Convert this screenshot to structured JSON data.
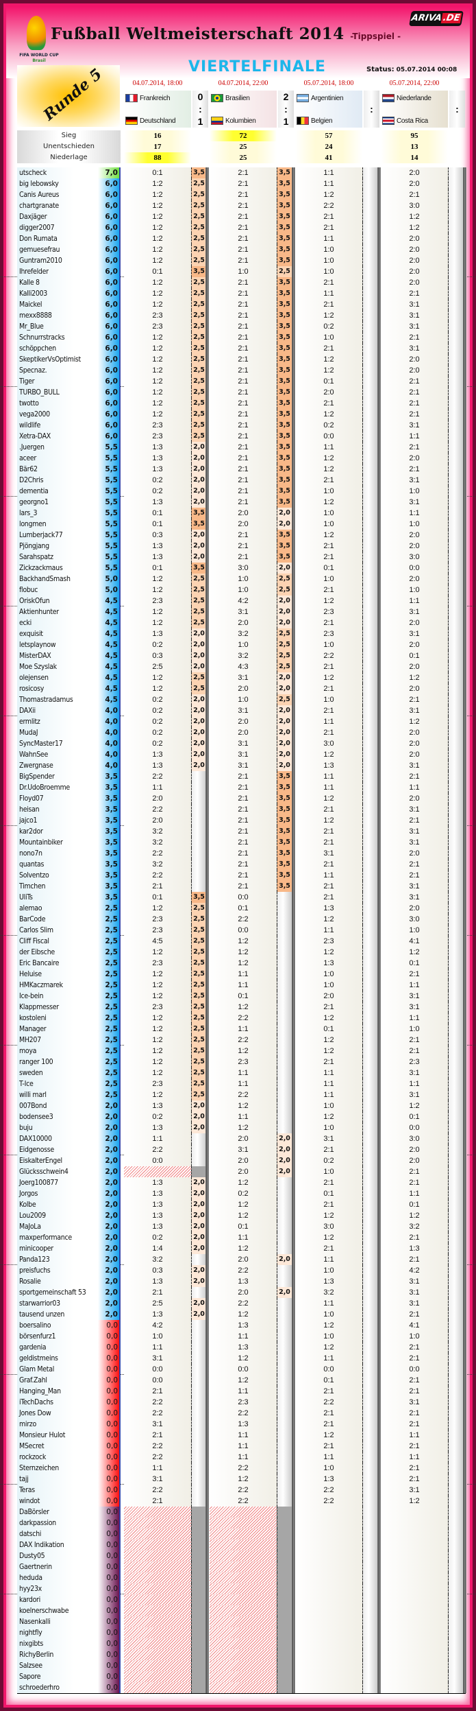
{
  "header": {
    "title": "Fußball Weltmeisterschaft 2014",
    "subtitle": "-Tippspiel -",
    "fifa_logo_text": "FIFA WORLD CUP",
    "fifa_logo_sub": "Brasil",
    "ariva_logo": "ARIVA",
    "ariva_logo_tld": ".DE",
    "round": "Runde 5",
    "stage": "VIERTELFINALE",
    "status_label": "Status:",
    "status_value": "05.07.2014 00:08"
  },
  "colors": {
    "frame": "#f0166a",
    "stage": "#1cb6ea",
    "date": "#cc0000",
    "pts_3_5": "#f8b888",
    "pts_2_5": "#fcd3b2",
    "pts_2_0": "#fde8d8"
  },
  "matches": [
    {
      "date": "04.07.2014, 18:00",
      "home": "Frankreich",
      "away": "Deutschland",
      "home_goals": "0",
      "sep": ":",
      "away_goals": "1",
      "home_flag": "france-flag",
      "away_flag": "germany-flag"
    },
    {
      "date": "04.07.2014, 22:00",
      "home": "Brasilien",
      "away": "Kolumbien",
      "home_goals": "2",
      "sep": ":",
      "away_goals": "1",
      "home_flag": "brazil-flag",
      "away_flag": "colombia-flag"
    },
    {
      "date": "05.07.2014, 18:00",
      "home": "Argentinien",
      "away": "Belgien",
      "home_goals": "",
      "sep": ":",
      "away_goals": "",
      "home_flag": "argentina-flag",
      "away_flag": "belgium-flag"
    },
    {
      "date": "05.07.2014, 22:00",
      "home": "Niederlande",
      "away": "Costa Rica",
      "home_goals": "",
      "sep": ":",
      "away_goals": "",
      "home_flag": "netherlands-flag",
      "away_flag": "costa-rica-flag"
    }
  ],
  "stats": {
    "labels": [
      "Sieg",
      "Unentschieden",
      "Niederlage"
    ],
    "values": [
      [
        "16",
        "17",
        "88"
      ],
      [
        "72",
        "25",
        "25"
      ],
      [
        "57",
        "24",
        "41"
      ],
      [
        "95",
        "13",
        "14"
      ]
    ]
  },
  "rows": [
    [
      "utscheck",
      "7,0",
      "0:1",
      "3,5",
      "2:1",
      "3,5",
      "1:1",
      "2:0"
    ],
    [
      "big lebowsky",
      "6,0",
      "1:2",
      "2,5",
      "2:1",
      "3,5",
      "1:1",
      "2:0"
    ],
    [
      "Canis Aureus",
      "6,0",
      "1:2",
      "2,5",
      "2:1",
      "3,5",
      "1:2",
      "2:1"
    ],
    [
      "chartgranate",
      "6,0",
      "1:2",
      "2,5",
      "2:1",
      "3,5",
      "2:2",
      "3:0"
    ],
    [
      "Daxjäger",
      "6,0",
      "1:2",
      "2,5",
      "2:1",
      "3,5",
      "2:1",
      "1:2"
    ],
    [
      "digger2007",
      "6,0",
      "1:2",
      "2,5",
      "2:1",
      "3,5",
      "2:1",
      "1:2"
    ],
    [
      "Don Rumata",
      "6,0",
      "1:2",
      "2,5",
      "2:1",
      "3,5",
      "1:1",
      "2:0"
    ],
    [
      "gemuesefrau",
      "6,0",
      "1:2",
      "2,5",
      "2:1",
      "3,5",
      "1:0",
      "2:0"
    ],
    [
      "Guntram2010",
      "6,0",
      "1:2",
      "2,5",
      "2:1",
      "3,5",
      "1:0",
      "2:0"
    ],
    [
      "Ihrefelder",
      "6,0",
      "0:1",
      "3,5",
      "1:0",
      "2,5",
      "1:0",
      "2:0"
    ],
    [
      "Kalle 8",
      "6,0",
      "1:2",
      "2,5",
      "2:1",
      "3,5",
      "2:1",
      "2:0"
    ],
    [
      "Kalli2003",
      "6,0",
      "1:2",
      "2,5",
      "2:1",
      "3,5",
      "1:1",
      "2:1"
    ],
    [
      "Maickel",
      "6,0",
      "1:2",
      "2,5",
      "2:1",
      "3,5",
      "2:1",
      "3:1"
    ],
    [
      "mexx8888",
      "6,0",
      "2:3",
      "2,5",
      "2:1",
      "3,5",
      "1:2",
      "3:1"
    ],
    [
      "Mr_Blue",
      "6,0",
      "2:3",
      "2,5",
      "2:1",
      "3,5",
      "0:2",
      "3:1"
    ],
    [
      "Schnurrstracks",
      "6,0",
      "1:2",
      "2,5",
      "2:1",
      "3,5",
      "1:0",
      "2:1"
    ],
    [
      "schöppchen",
      "6,0",
      "1:2",
      "2,5",
      "2:1",
      "3,5",
      "2:1",
      "3:1"
    ],
    [
      "SkeptikerVsOptimist",
      "6,0",
      "1:2",
      "2,5",
      "2:1",
      "3,5",
      "1:2",
      "2:0"
    ],
    [
      "Specnaz.",
      "6,0",
      "1:2",
      "2,5",
      "2:1",
      "3,5",
      "1:2",
      "2:0"
    ],
    [
      "Tiger",
      "6,0",
      "1:2",
      "2,5",
      "2:1",
      "3,5",
      "0:1",
      "2:1"
    ],
    [
      "TURBO_BULL",
      "6,0",
      "1:2",
      "2,5",
      "2:1",
      "3,5",
      "2:0",
      "2:1"
    ],
    [
      "twotto",
      "6,0",
      "1:2",
      "2,5",
      "2:1",
      "3,5",
      "2:1",
      "2:1"
    ],
    [
      "vega2000",
      "6,0",
      "1:2",
      "2,5",
      "2:1",
      "3,5",
      "1:2",
      "2:1"
    ],
    [
      "wildlife",
      "6,0",
      "2:3",
      "2,5",
      "2:1",
      "3,5",
      "0:2",
      "3:1"
    ],
    [
      "Xetra-DAX",
      "6,0",
      "2:3",
      "2,5",
      "2:1",
      "3,5",
      "0:0",
      "1:1"
    ],
    [
      ".Juergen",
      "5,5",
      "1:3",
      "2,0",
      "2:1",
      "3,5",
      "1:1",
      "2:1"
    ],
    [
      "aceer",
      "5,5",
      "1:3",
      "2,0",
      "2:1",
      "3,5",
      "1:2",
      "2:0"
    ],
    [
      "Bär62",
      "5,5",
      "1:3",
      "2,0",
      "2:1",
      "3,5",
      "1:2",
      "2:1"
    ],
    [
      "D2Chris",
      "5,5",
      "0:2",
      "2,0",
      "2:1",
      "3,5",
      "2:1",
      "3:1"
    ],
    [
      "dementia",
      "5,5",
      "0:2",
      "2,0",
      "2:1",
      "3,5",
      "1:0",
      "1:0"
    ],
    [
      "georgno1",
      "5,5",
      "1:3",
      "2,0",
      "2:1",
      "3,5",
      "1:2",
      "3:1"
    ],
    [
      "lars_3",
      "5,5",
      "0:1",
      "3,5",
      "2:0",
      "2,0",
      "1:0",
      "1:1"
    ],
    [
      "longmen",
      "5,5",
      "0:1",
      "3,5",
      "2:0",
      "2,0",
      "1:0",
      "1:0"
    ],
    [
      "Lumberjack77",
      "5,5",
      "0:3",
      "2,0",
      "2:1",
      "3,5",
      "1:2",
      "2:0"
    ],
    [
      "Pjöngjang",
      "5,5",
      "1:3",
      "2,0",
      "2:1",
      "3,5",
      "2:1",
      "2:0"
    ],
    [
      "Sarahspatz",
      "5,5",
      "1:3",
      "2,0",
      "2:1",
      "3,5",
      "2:1",
      "3:0"
    ],
    [
      "Zickzackmaus",
      "5,5",
      "0:1",
      "3,5",
      "3:0",
      "2,0",
      "0:1",
      "0:0"
    ],
    [
      "BackhandSmash",
      "5,0",
      "1:2",
      "2,5",
      "1:0",
      "2,5",
      "1:0",
      "2:0"
    ],
    [
      "flobuc",
      "5,0",
      "1:2",
      "2,5",
      "1:0",
      "2,5",
      "2:1",
      "1:0"
    ],
    [
      "OriskOfun",
      "4,5",
      "2:3",
      "2,5",
      "4:2",
      "2,0",
      "1:2",
      "1:1"
    ],
    [
      "Aktienhunter",
      "4,5",
      "1:2",
      "2,5",
      "3:1",
      "2,0",
      "2:3",
      "3:1"
    ],
    [
      "ecki",
      "4,5",
      "1:2",
      "2,5",
      "2:0",
      "2,0",
      "2:1",
      "2:0"
    ],
    [
      "exquisit",
      "4,5",
      "1:3",
      "2,0",
      "3:2",
      "2,5",
      "2:3",
      "3:1"
    ],
    [
      "letsplaynow",
      "4,5",
      "0:2",
      "2,0",
      "1:0",
      "2,5",
      "1:0",
      "2:0"
    ],
    [
      "MisterDAX",
      "4,5",
      "0:3",
      "2,0",
      "3:2",
      "2,5",
      "2:2",
      "0:1"
    ],
    [
      "Moe Szyslak",
      "4,5",
      "2:5",
      "2,0",
      "4:3",
      "2,5",
      "2:1",
      "2:0"
    ],
    [
      "olejensen",
      "4,5",
      "1:2",
      "2,5",
      "3:1",
      "2,0",
      "1:2",
      "1:2"
    ],
    [
      "rosicosy",
      "4,5",
      "1:2",
      "2,5",
      "2:0",
      "2,0",
      "2:1",
      "2:0"
    ],
    [
      "Thomastradamus",
      "4,5",
      "0:2",
      "2,0",
      "1:0",
      "2,5",
      "1:0",
      "2:1"
    ],
    [
      "DAXii",
      "4,0",
      "0:2",
      "2,0",
      "3:1",
      "2,0",
      "2:1",
      "3:1"
    ],
    [
      "ermlitz",
      "4,0",
      "0:2",
      "2,0",
      "2:0",
      "2,0",
      "1:1",
      "1:2"
    ],
    [
      "MudaJ",
      "4,0",
      "0:2",
      "2,0",
      "2:0",
      "2,0",
      "2:1",
      "2:0"
    ],
    [
      "SyncMaster17",
      "4,0",
      "0:2",
      "2,0",
      "3:1",
      "2,0",
      "3:0",
      "2:0"
    ],
    [
      "WahnSee",
      "4,0",
      "1:3",
      "2,0",
      "3:1",
      "2,0",
      "1:2",
      "2:0"
    ],
    [
      "Zwergnase",
      "4,0",
      "1:3",
      "2,0",
      "3:1",
      "2,0",
      "1:3",
      "3:1"
    ],
    [
      "BigSpender",
      "3,5",
      "2:2",
      "",
      "2:1",
      "3,5",
      "1:1",
      "2:1"
    ],
    [
      "Dr.UdoBroemme",
      "3,5",
      "1:1",
      "",
      "2:1",
      "3,5",
      "1:1",
      "1:1"
    ],
    [
      "Floyd07",
      "3,5",
      "2:0",
      "",
      "2:1",
      "3,5",
      "1:2",
      "2:0"
    ],
    [
      "heisan",
      "3,5",
      "2:2",
      "",
      "2:1",
      "3,5",
      "2:1",
      "3:1"
    ],
    [
      "jajco1",
      "3,5",
      "2:0",
      "",
      "2:1",
      "3,5",
      "1:2",
      "2:1"
    ],
    [
      "kar2dor",
      "3,5",
      "3:2",
      "",
      "2:1",
      "3,5",
      "2:1",
      "3:1"
    ],
    [
      "Mountainbiker",
      "3,5",
      "3:2",
      "",
      "2:1",
      "3,5",
      "2:1",
      "3:1"
    ],
    [
      "nono7n",
      "3,5",
      "2:2",
      "",
      "2:1",
      "3,5",
      "3:1",
      "2:0"
    ],
    [
      "quantas",
      "3,5",
      "3:2",
      "",
      "2:1",
      "3,5",
      "2:1",
      "2:1"
    ],
    [
      "Solventzo",
      "3,5",
      "2:2",
      "",
      "2:1",
      "3,5",
      "1:1",
      "2:1"
    ],
    [
      "Timchen",
      "3,5",
      "2:1",
      "",
      "2:1",
      "3,5",
      "2:1",
      "3:1"
    ],
    [
      "UliTs",
      "3,5",
      "0:1",
      "3,5",
      "0:0",
      "",
      "2:1",
      "3:1"
    ],
    [
      "alemao",
      "2,5",
      "1:2",
      "2,5",
      "0:1",
      "",
      "1:3",
      "2:0"
    ],
    [
      "BarCode",
      "2,5",
      "2:3",
      "2,5",
      "2:2",
      "",
      "1:2",
      "3:0"
    ],
    [
      "Carlos Slim",
      "2,5",
      "2:3",
      "2,5",
      "0:0",
      "",
      "1:1",
      "1:0"
    ],
    [
      "Cliff Fiscal",
      "2,5",
      "4:5",
      "2,5",
      "1:2",
      "",
      "2:3",
      "4:1"
    ],
    [
      "der Eibsche",
      "2,5",
      "1:2",
      "2,5",
      "1:2",
      "",
      "1:2",
      "1:2"
    ],
    [
      "Eric Bancaire",
      "2,5",
      "2:3",
      "2,5",
      "1:2",
      "",
      "1:3",
      "0:1"
    ],
    [
      "Heluise",
      "2,5",
      "1:2",
      "2,5",
      "1:1",
      "",
      "1:0",
      "2:1"
    ],
    [
      "HMKaczmarek",
      "2,5",
      "1:2",
      "2,5",
      "1:1",
      "",
      "1:0",
      "1:1"
    ],
    [
      "Ice-bein",
      "2,5",
      "1:2",
      "2,5",
      "0:1",
      "",
      "2:0",
      "3:1"
    ],
    [
      "Klappmesser",
      "2,5",
      "2:3",
      "2,5",
      "1:2",
      "",
      "2:1",
      "3:1"
    ],
    [
      "kostoleni",
      "2,5",
      "1:2",
      "2,5",
      "2:2",
      "",
      "1:2",
      "1:1"
    ],
    [
      "Manager",
      "2,5",
      "1:2",
      "2,5",
      "1:1",
      "",
      "0:1",
      "1:0"
    ],
    [
      "MH207",
      "2,5",
      "1:2",
      "2,5",
      "2:2",
      "",
      "1:2",
      "2:1"
    ],
    [
      "moya",
      "2,5",
      "1:2",
      "2,5",
      "1:2",
      "",
      "1:2",
      "2:1"
    ],
    [
      "ranger 100",
      "2,5",
      "1:2",
      "2,5",
      "2:3",
      "",
      "2:1",
      "2:3"
    ],
    [
      "sweden",
      "2,5",
      "1:2",
      "2,5",
      "1:1",
      "",
      "1:1",
      "3:1"
    ],
    [
      "T-Ice",
      "2,5",
      "2:3",
      "2,5",
      "1:1",
      "",
      "1:1",
      "1:1"
    ],
    [
      "willi marl",
      "2,5",
      "1:2",
      "2,5",
      "2:2",
      "",
      "1:1",
      "3:1"
    ],
    [
      "007Bond",
      "2,0",
      "1:3",
      "2,0",
      "1:2",
      "",
      "1:0",
      "1:2"
    ],
    [
      "bodensee3",
      "2,0",
      "0:2",
      "2,0",
      "1:1",
      "",
      "1:2",
      "0:1"
    ],
    [
      "buju",
      "2,0",
      "1:3",
      "2,0",
      "1:2",
      "",
      "1:0",
      "0:0"
    ],
    [
      "DAX10000",
      "2,0",
      "1:1",
      "",
      "2:0",
      "2,0",
      "3:1",
      "3:0"
    ],
    [
      "Eidgenosse",
      "2,0",
      "2:2",
      "",
      "3:1",
      "2,0",
      "2:1",
      "2:0"
    ],
    [
      "EiskalterEngel",
      "2,0",
      "0:0",
      "",
      "2:0",
      "2,0",
      "0:2",
      "2:0"
    ],
    [
      "Glücksschwein4",
      "2,0",
      null,
      null,
      "2:0",
      "2,0",
      "1:0",
      "2:1"
    ],
    [
      "Joerg100877",
      "2,0",
      "1:3",
      "2,0",
      "1:2",
      "",
      "2:1",
      "2:1"
    ],
    [
      "Jorgos",
      "2,0",
      "1:3",
      "2,0",
      "0:2",
      "",
      "0:1",
      "1:1"
    ],
    [
      "Kolbe",
      "2,0",
      "1:3",
      "2,0",
      "1:2",
      "",
      "2:1",
      "0:1"
    ],
    [
      "Lou2009",
      "2,0",
      "1:3",
      "2,0",
      "1:2",
      "",
      "1:2",
      "1:2"
    ],
    [
      "MaJoLa",
      "2,0",
      "1:3",
      "2,0",
      "0:1",
      "",
      "3:0",
      "3:2"
    ],
    [
      "maxperformance",
      "2,0",
      "0:2",
      "2,0",
      "1:1",
      "",
      "1:2",
      "2:1"
    ],
    [
      "minicooper",
      "2,0",
      "1:4",
      "2,0",
      "1:2",
      "",
      "2:1",
      "1:3"
    ],
    [
      "Panda123",
      "2,0",
      "3:2",
      "",
      "2:0",
      "2,0",
      "1:1",
      "2:1"
    ],
    [
      "preisfuchs",
      "2,0",
      "0:3",
      "2,0",
      "2:2",
      "",
      "1:0",
      "4:2"
    ],
    [
      "Rosalie",
      "2,0",
      "1:3",
      "2,0",
      "1:3",
      "",
      "1:3",
      "3:1"
    ],
    [
      "sportgemeinschaft 53",
      "2,0",
      "2:1",
      "",
      "2:0",
      "2,0",
      "3:2",
      "3:1"
    ],
    [
      "starwarrior03",
      "2,0",
      "2:5",
      "2,0",
      "2:2",
      "",
      "1:1",
      "3:1"
    ],
    [
      "tausend unzen",
      "2,0",
      "1:3",
      "2,0",
      "1:2",
      "",
      "1:0",
      "2:1"
    ],
    [
      "boersalino",
      "0,0",
      "4:2",
      "",
      "1:3",
      "",
      "1:2",
      "4:1"
    ],
    [
      "börsenfurz1",
      "0,0",
      "1:0",
      "",
      "1:1",
      "",
      "1:0",
      "1:0"
    ],
    [
      "gardenia",
      "0,0",
      "1:1",
      "",
      "1:3",
      "",
      "1:2",
      "2:1"
    ],
    [
      "geldistmeins",
      "0,0",
      "3:1",
      "",
      "1:2",
      "",
      "1:1",
      "2:1"
    ],
    [
      "Glam Metal",
      "0,0",
      "0:0",
      "",
      "0:0",
      "",
      "0:0",
      "0:0"
    ],
    [
      "Graf.Zahl",
      "0,0",
      "0:0",
      "",
      "1:2",
      "",
      "0:1",
      "2:1"
    ],
    [
      "Hanging_Man",
      "0,0",
      "2:1",
      "",
      "1:1",
      "",
      "2:1",
      "2:1"
    ],
    [
      "iTechDachs",
      "0,0",
      "2:2",
      "",
      "2:3",
      "",
      "2:2",
      "3:1"
    ],
    [
      "Jones Dow",
      "0,0",
      "2:2",
      "",
      "2:2",
      "",
      "2:1",
      "2:1"
    ],
    [
      "mirzo",
      "0,0",
      "3:1",
      "",
      "1:3",
      "",
      "2:1",
      "2:1"
    ],
    [
      "Monsieur Hulot",
      "0,0",
      "2:1",
      "",
      "1:1",
      "",
      "1:2",
      "1:1"
    ],
    [
      "MSecret",
      "0,0",
      "2:2",
      "",
      "1:1",
      "",
      "2:1",
      "2:1"
    ],
    [
      "rockzock",
      "0,0",
      "2:2",
      "",
      "1:1",
      "",
      "1:1",
      "1:1"
    ],
    [
      "Sternzeichen",
      "0,0",
      "1:1",
      "",
      "2:2",
      "",
      "1:0",
      "2:1"
    ],
    [
      "tajj",
      "0,0",
      "3:1",
      "",
      "1:2",
      "",
      "1:3",
      "2:1"
    ],
    [
      "Teras",
      "0,0",
      "2:2",
      "",
      "2:2",
      "",
      "2:2",
      "3:1"
    ],
    [
      "windot",
      "0,0",
      "2:1",
      "",
      "2:2",
      "",
      "2:2",
      "1:2"
    ],
    [
      "DaBörsler",
      "0,0",
      null,
      null,
      null,
      null,
      "",
      ""
    ],
    [
      "darkpassion",
      "0,0",
      null,
      null,
      null,
      null,
      "",
      ""
    ],
    [
      "datschi",
      "0,0",
      null,
      null,
      null,
      null,
      "",
      ""
    ],
    [
      "DAX Indikation",
      "0,0",
      null,
      null,
      null,
      null,
      "",
      ""
    ],
    [
      "Dusty05",
      "0,0",
      null,
      null,
      null,
      null,
      "",
      ""
    ],
    [
      "Gaertnerin",
      "0,0",
      null,
      null,
      null,
      null,
      "",
      ""
    ],
    [
      "heduda",
      "0,0",
      null,
      null,
      null,
      null,
      "",
      ""
    ],
    [
      "hyy23x",
      "0,0",
      null,
      null,
      null,
      null,
      "",
      ""
    ],
    [
      "kardori",
      "0,0",
      null,
      null,
      null,
      null,
      "",
      ""
    ],
    [
      "koelnerschwabe",
      "0,0",
      null,
      null,
      null,
      null,
      "",
      ""
    ],
    [
      "Nasenkalli",
      "0,0",
      null,
      null,
      null,
      null,
      "",
      ""
    ],
    [
      "nightfly",
      "0,0",
      null,
      null,
      null,
      null,
      "",
      ""
    ],
    [
      "nixgibts",
      "0,0",
      null,
      null,
      null,
      null,
      "",
      ""
    ],
    [
      "RichyBerlin",
      "0,0",
      null,
      null,
      null,
      null,
      "",
      ""
    ],
    [
      "Salzsee",
      "0,0",
      null,
      null,
      null,
      null,
      "",
      ""
    ],
    [
      "Sapore",
      "0,0",
      null,
      null,
      null,
      null,
      "",
      ""
    ],
    [
      "schroederhro",
      "0,0",
      null,
      null,
      null,
      null,
      "",
      ""
    ]
  ]
}
